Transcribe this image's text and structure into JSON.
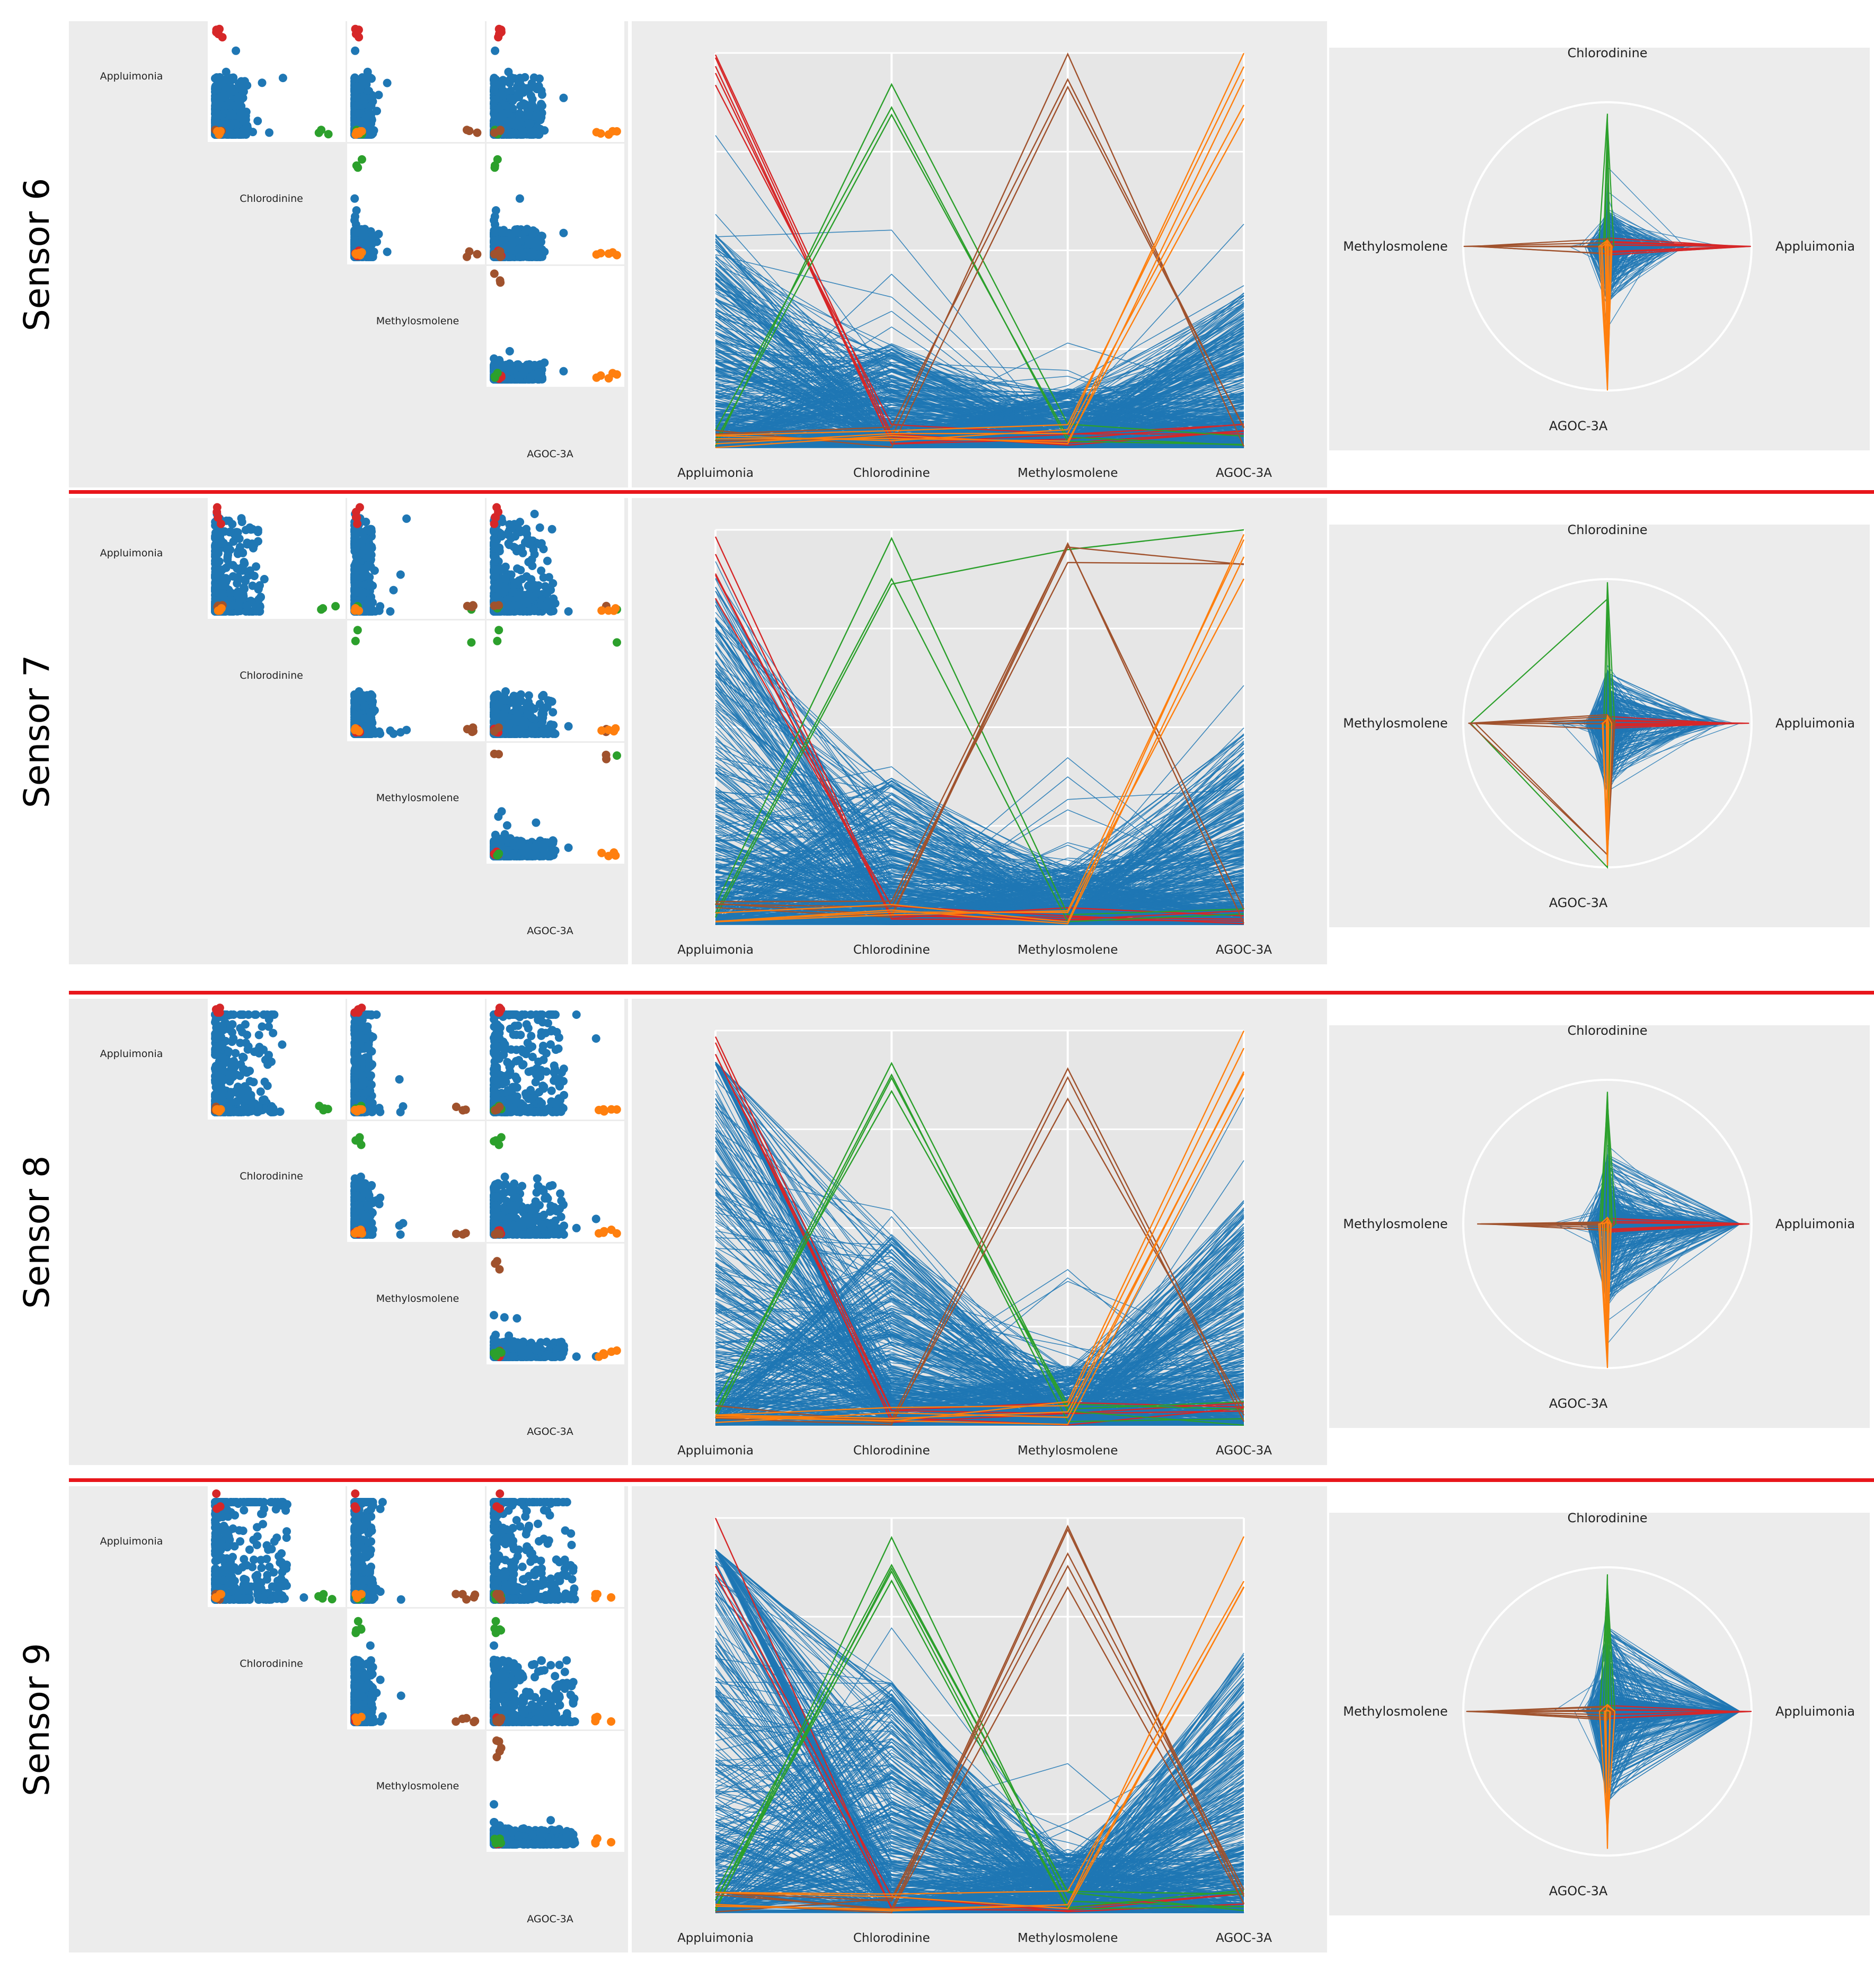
{
  "variables": [
    "Appluimonia",
    "Chlorodinine",
    "Methylosmolene",
    "AGOC-3A"
  ],
  "colors": {
    "normal": "#1f77b4",
    "appluimonia_peak": "#d62728",
    "chlorodinine_peak": "#2ca02c",
    "methylosmolene_peak": "#a0522d",
    "agoc_peak": "#ff7f0e",
    "divider": "#e8161b",
    "panel_bg": "#ececec"
  },
  "chart_data": [
    {
      "sensor_label": "Sensor 6",
      "type": "scatter-matrix + parallel-coordinates + radar",
      "axes": [
        "Appluimonia",
        "Chlorodinine",
        "Methylosmolene",
        "AGOC-3A"
      ],
      "series": [
        "normal",
        "appluimonia_peak",
        "chlorodinine_peak",
        "methylosmolene_peak",
        "agoc_peak"
      ]
    },
    {
      "sensor_label": "Sensor 7",
      "type": "scatter-matrix + parallel-coordinates + radar",
      "axes": [
        "Appluimonia",
        "Chlorodinine",
        "Methylosmolene",
        "AGOC-3A"
      ],
      "series": [
        "normal",
        "appluimonia_peak",
        "chlorodinine_peak",
        "methylosmolene_peak",
        "agoc_peak"
      ]
    },
    {
      "sensor_label": "Sensor 8",
      "type": "scatter-matrix + parallel-coordinates + radar",
      "axes": [
        "Appluimonia",
        "Chlorodinine",
        "Methylosmolene",
        "AGOC-3A"
      ],
      "series": [
        "normal",
        "appluimonia_peak",
        "chlorodinine_peak",
        "methylosmolene_peak",
        "agoc_peak"
      ]
    },
    {
      "sensor_label": "Sensor 9",
      "type": "scatter-matrix + parallel-coordinates + radar",
      "axes": [
        "Appluimonia",
        "Chlorodinine",
        "Methylosmolene",
        "AGOC-3A"
      ],
      "series": [
        "normal",
        "appluimonia_peak",
        "chlorodinine_peak",
        "methylosmolene_peak",
        "agoc_peak"
      ]
    }
  ]
}
